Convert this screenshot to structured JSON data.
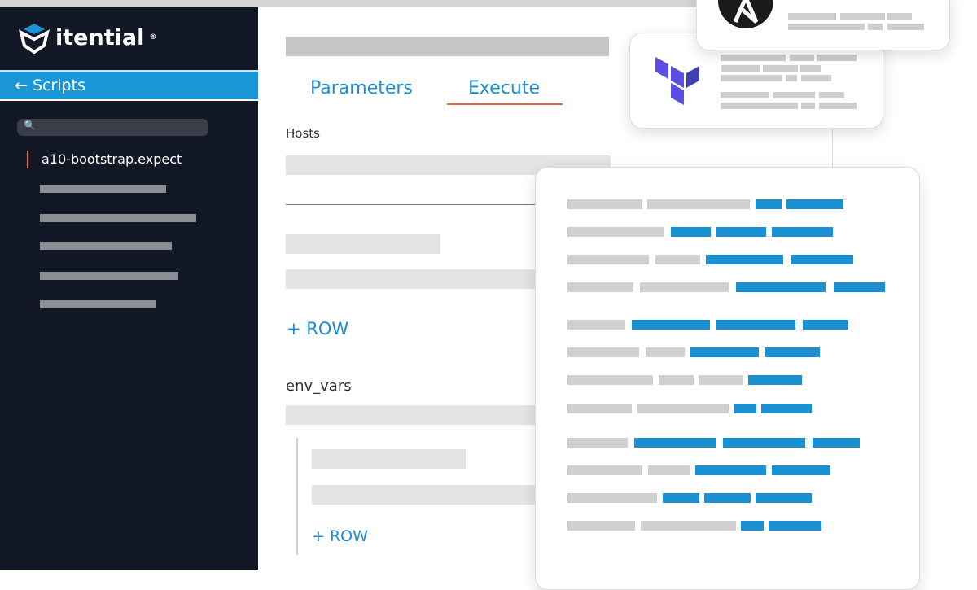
{
  "brand": {
    "name": "itential",
    "registered": "®"
  },
  "sidebar": {
    "back_label": "← Scripts",
    "search_icon": "🔍",
    "selected_item": "a10-bootstrap.expect"
  },
  "main": {
    "tabs": [
      {
        "label": "Parameters"
      },
      {
        "label": "Execute",
        "active": true
      }
    ],
    "hosts_label": "Hosts",
    "add_row_label": "+ ROW",
    "env_vars_label": "env_vars",
    "nested_add_row_label": "+ ROW"
  },
  "colors": {
    "accent": "#1a95d6",
    "sidebar_bg": "#121826",
    "active_marker": "#e2663a",
    "terraform": "#5c4ee5",
    "ansible": "#1a1a1a"
  },
  "cards": [
    {
      "icon": "ansible-logo-icon"
    },
    {
      "icon": "terraform-logo-icon"
    },
    {
      "icon": "code-card"
    }
  ]
}
